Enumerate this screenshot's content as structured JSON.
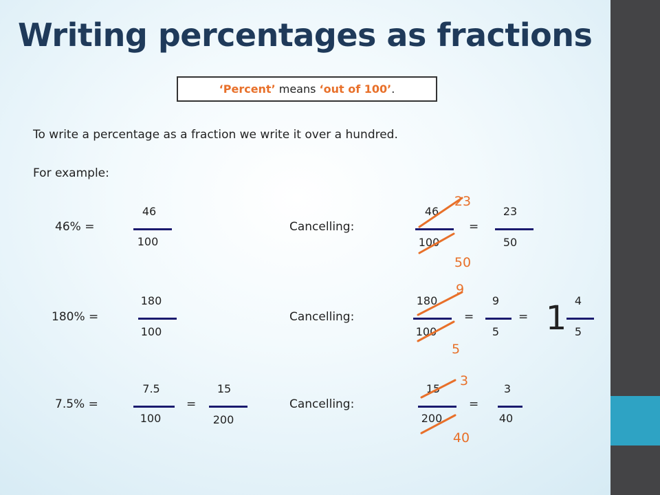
{
  "slide": {
    "title": "Writing percentages as fractions",
    "definition": {
      "part1": "‘Percent’",
      "part2": " means ",
      "part3": "‘out of 100’",
      "part4": "."
    },
    "intro": "To write a percentage as a fraction we write it over a hundred.",
    "for_example": "For example:"
  },
  "ex1": {
    "label": "46% =",
    "num": "46",
    "den": "100",
    "cancel_label": "Cancelling:",
    "c_num": "46",
    "c_den": "100",
    "eq": "=",
    "r_num": "23",
    "r_den": "50",
    "new_num": "23",
    "new_den": "50"
  },
  "ex2": {
    "label": "180% =",
    "num": "180",
    "den": "100",
    "cancel_label": "Cancelling:",
    "c_num": "180",
    "c_den": "100",
    "eq1": "=",
    "r_num": "9",
    "r_den": "5",
    "eq2": "=",
    "whole": "1",
    "m_num": "4",
    "m_den": "5",
    "new_num": "9",
    "new_den": "5"
  },
  "ex3": {
    "label": "7.5% =",
    "num": "7.5",
    "den": "100",
    "eq": "=",
    "num2": "15",
    "den2": "200",
    "cancel_label": "Cancelling:",
    "c_num": "15",
    "c_den": "200",
    "eq2": "=",
    "r_num": "3",
    "r_den": "40",
    "new_num": "3",
    "new_den": "40"
  },
  "colors": {
    "title": "#1f3a5a",
    "accent": "#e8702a",
    "fraction_bar": "#1a1a6e",
    "sidebar": "#444446",
    "sidebar_accent": "#2ea3c4"
  }
}
